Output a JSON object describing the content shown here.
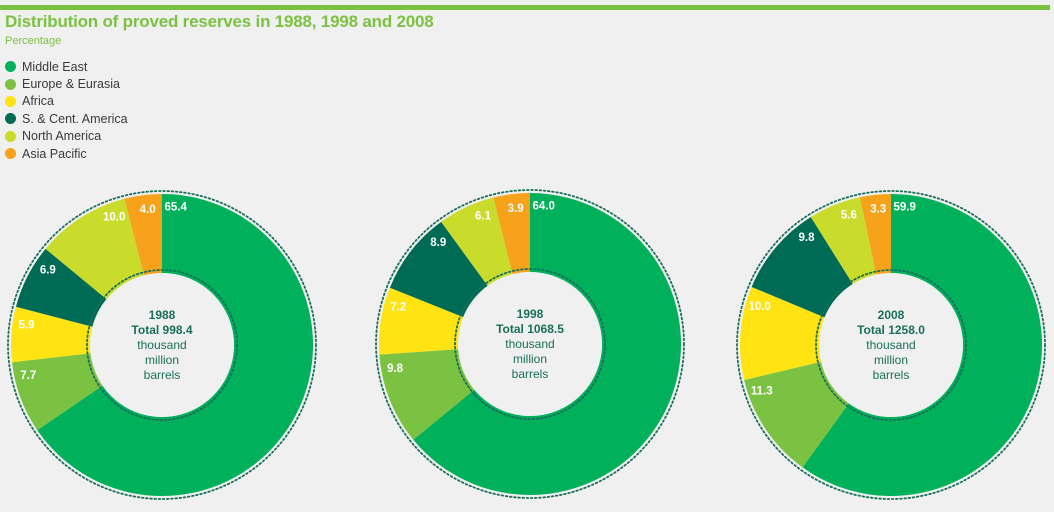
{
  "header": {
    "title": "Distribution of proved reserves in 1988, 1998 and 2008",
    "subtitle": "Percentage"
  },
  "colors": {
    "accent": "#7cc242",
    "center_text": "#1a6e5a"
  },
  "legend": [
    {
      "label": "Middle East",
      "color": "#00b05a"
    },
    {
      "label": "Europe & Eurasia",
      "color": "#7cc242"
    },
    {
      "label": "Africa",
      "color": "#ffe312"
    },
    {
      "label": "S. & Cent. America",
      "color": "#006b55"
    },
    {
      "label": "North America",
      "color": "#c9dc2c"
    },
    {
      "label": "Asia Pacific",
      "color": "#f7a21b"
    }
  ],
  "chart_data": [
    {
      "type": "pie",
      "variant": "donut",
      "categories": [
        "Middle East",
        "Europe & Eurasia",
        "Africa",
        "S. & Cent. America",
        "North America",
        "Asia Pacific"
      ],
      "values": [
        65.4,
        7.7,
        5.9,
        6.9,
        10.0,
        4.0
      ],
      "labels": [
        "65.4",
        "7.7",
        "5.9",
        "6.9",
        "10.0",
        "4.0"
      ],
      "center": {
        "year": "1988",
        "total": "Total 998.4",
        "unit": [
          "thousand",
          "million",
          "barrels"
        ]
      }
    },
    {
      "type": "pie",
      "variant": "donut",
      "categories": [
        "Middle East",
        "Europe & Eurasia",
        "Africa",
        "S. & Cent. America",
        "North America",
        "Asia Pacific"
      ],
      "values": [
        64.0,
        9.8,
        7.2,
        8.9,
        6.1,
        3.9
      ],
      "labels": [
        "64.0",
        "9.8",
        "7.2",
        "8.9",
        "6.1",
        "3.9"
      ],
      "center": {
        "year": "1998",
        "total": "Total 1068.5",
        "unit": [
          "thousand",
          "million",
          "barrels"
        ]
      }
    },
    {
      "type": "pie",
      "variant": "donut",
      "categories": [
        "Middle East",
        "Europe & Eurasia",
        "Africa",
        "S. & Cent. America",
        "North America",
        "Asia Pacific"
      ],
      "values": [
        59.9,
        11.3,
        10.0,
        9.8,
        5.6,
        3.3
      ],
      "labels": [
        "59.9",
        "11.3",
        "10.0",
        "9.8",
        "5.6",
        "3.3"
      ],
      "center": {
        "year": "2008",
        "total": "Total 1258.0",
        "unit": [
          "thousand",
          "million",
          "barrels"
        ]
      }
    }
  ]
}
